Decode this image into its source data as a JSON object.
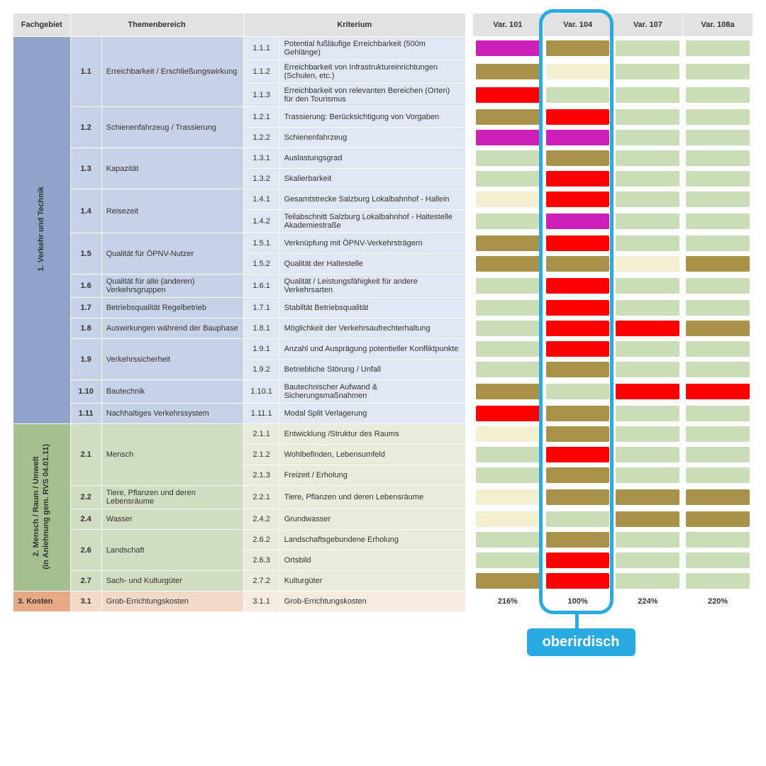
{
  "colors": {
    "palegreen": "#cbddb6",
    "cream": "#f3efd0",
    "olive": "#a8924a",
    "magenta": "#cc1fb8",
    "red": "#ff0000"
  },
  "highlight": {
    "label": "oberirdisch",
    "color": "#29abe2"
  },
  "headers": {
    "fachgebiet": "Fachgebiet",
    "themenbereich": "Themenbereich",
    "kriterium": "Kriterium",
    "variants": [
      "Var. 101",
      "Var. 104",
      "Var. 107",
      "Var. 108a"
    ]
  },
  "groups": [
    {
      "id": "g1",
      "cls": "tb1",
      "fgcls": "fg1",
      "label": "1. Verkehr und Technik",
      "themes": [
        {
          "num": "1.1",
          "txt": "Erreichbarkeit / Erschließungswirkung",
          "krit": [
            {
              "num": "1.1.1",
              "txt": "Potential fußläufige Erreichbarkeit (500m Gehlänge)",
              "v": [
                "magenta",
                "olive",
                "palegreen",
                "palegreen"
              ]
            },
            {
              "num": "1.1.2",
              "txt": "Erreichbarkeit von Infrastruktureinrichtungen (Schulen, etc.)",
              "v": [
                "olive",
                "cream",
                "palegreen",
                "palegreen"
              ]
            },
            {
              "num": "1.1.3",
              "txt": "Erreichbarkeit von relevanten Bereichen (Orten) für den Tourismus",
              "v": [
                "red",
                "palegreen",
                "palegreen",
                "palegreen"
              ]
            }
          ]
        },
        {
          "num": "1.2",
          "txt": "Schienenfahrzeug / Trassierung",
          "krit": [
            {
              "num": "1.2.1",
              "txt": "Trassierung: Berücksichtigung von Vorgaben",
              "v": [
                "olive",
                "red",
                "palegreen",
                "palegreen"
              ]
            },
            {
              "num": "1.2.2",
              "txt": "Schienenfahrzeug",
              "v": [
                "magenta",
                "magenta",
                "palegreen",
                "palegreen"
              ]
            }
          ]
        },
        {
          "num": "1.3",
          "txt": "Kapazität",
          "krit": [
            {
              "num": "1.3.1",
              "txt": "Auslastungsgrad",
              "v": [
                "palegreen",
                "olive",
                "palegreen",
                "palegreen"
              ]
            },
            {
              "num": "1.3.2",
              "txt": "Skalierbarkeit",
              "v": [
                "palegreen",
                "red",
                "palegreen",
                "palegreen"
              ]
            }
          ]
        },
        {
          "num": "1.4",
          "txt": "Reisezeit",
          "krit": [
            {
              "num": "1.4.1",
              "txt": "Gesamtstrecke Salzburg Lokalbahnhof - Hallein",
              "v": [
                "cream",
                "red",
                "palegreen",
                "palegreen"
              ]
            },
            {
              "num": "1.4.2",
              "txt": "Teilabschnitt  Salzburg Lokalbahnhof - Haltestelle Akademiestraße",
              "v": [
                "palegreen",
                "magenta",
                "palegreen",
                "palegreen"
              ]
            }
          ]
        },
        {
          "num": "1.5",
          "txt": "Qualität für ÖPNV-Nutzer",
          "krit": [
            {
              "num": "1.5.1",
              "txt": "Verknüpfung mit ÖPNV-Verkehrsträgern",
              "v": [
                "olive",
                "red",
                "palegreen",
                "palegreen"
              ]
            },
            {
              "num": "1.5.2",
              "txt": "Qualität der Haltestelle",
              "v": [
                "olive",
                "olive",
                "cream",
                "olive"
              ]
            }
          ]
        },
        {
          "num": "1.6",
          "txt": "Qualität für alle (anderen) Verkehrsgruppen",
          "krit": [
            {
              "num": "1.6.1",
              "txt": "Qualität / Leistungsfähigkeit für andere Verkehrsarten",
              "v": [
                "palegreen",
                "red",
                "palegreen",
                "palegreen"
              ]
            }
          ]
        },
        {
          "num": "1.7",
          "txt": "Betriebsqualität Regelbetrieb",
          "krit": [
            {
              "num": "1.7.1",
              "txt": "Stabiltät Betriebsqualität",
              "v": [
                "palegreen",
                "red",
                "palegreen",
                "palegreen"
              ]
            }
          ]
        },
        {
          "num": "1.8",
          "txt": "Auswirkungen während der Bauphase",
          "krit": [
            {
              "num": "1.8.1",
              "txt": "Möglichkeit der Verkehrsaufrechterhaltung",
              "v": [
                "palegreen",
                "red",
                "red",
                "olive"
              ]
            }
          ]
        },
        {
          "num": "1.9",
          "txt": "Verkehrssicherheit",
          "krit": [
            {
              "num": "1.9.1",
              "txt": "Anzahl und Ausprägung potentieller Konfliktpunkte",
              "v": [
                "palegreen",
                "red",
                "palegreen",
                "palegreen"
              ]
            },
            {
              "num": "1.9.2",
              "txt": "Betriebliche Störung / Unfall",
              "v": [
                "palegreen",
                "olive",
                "palegreen",
                "palegreen"
              ]
            }
          ]
        },
        {
          "num": "1.10",
          "txt": "Bautechnik",
          "krit": [
            {
              "num": "1.10.1",
              "txt": "Bautechnischer Aufwand & Sicherungsmaßnahmen",
              "v": [
                "olive",
                "palegreen",
                "red",
                "red"
              ]
            }
          ]
        },
        {
          "num": "1.11",
          "txt": "Nachhaltiges Verkehrssystem",
          "krit": [
            {
              "num": "1.11.1",
              "txt": "Modal Split Verlagerung",
              "v": [
                "red",
                "olive",
                "palegreen",
                "palegreen"
              ]
            }
          ]
        }
      ]
    },
    {
      "id": "g2",
      "cls": "tb2",
      "fgcls": "fg2",
      "label": "2. Mensch / Raum / Umwelt\n(in Anlehnung gem. RVS 04.01.11)",
      "themes": [
        {
          "num": "2.1",
          "txt": "Mensch",
          "krit": [
            {
              "num": "2.1.1",
              "txt": "Entwicklung /Struktur des Raums",
              "v": [
                "cream",
                "olive",
                "palegreen",
                "palegreen"
              ]
            },
            {
              "num": "2.1.2",
              "txt": "Wohlbefinden, Lebensumfeld",
              "v": [
                "palegreen",
                "red",
                "palegreen",
                "palegreen"
              ]
            },
            {
              "num": "2.1.3",
              "txt": "Freizeit / Erholung",
              "v": [
                "palegreen",
                "olive",
                "palegreen",
                "palegreen"
              ]
            }
          ]
        },
        {
          "num": "2.2",
          "txt": "Tiere, Pflanzen und deren Lebensräume",
          "krit": [
            {
              "num": "2.2.1",
              "txt": "Tiere, Pflanzen und deren Lebensräume",
              "v": [
                "cream",
                "olive",
                "olive",
                "olive"
              ]
            }
          ]
        },
        {
          "num": "2.4",
          "txt": "Wasser",
          "krit": [
            {
              "num": "2.4.2",
              "txt": "Grundwasser",
              "v": [
                "cream",
                "palegreen",
                "olive",
                "olive"
              ]
            }
          ]
        },
        {
          "num": "2.6",
          "txt": "Landschaft",
          "krit": [
            {
              "num": "2.6.2",
              "txt": "Landschaftsgebundene Erholung",
              "v": [
                "palegreen",
                "olive",
                "palegreen",
                "palegreen"
              ]
            },
            {
              "num": "2.6.3",
              "txt": "Ortsbild",
              "v": [
                "palegreen",
                "red",
                "palegreen",
                "palegreen"
              ]
            }
          ]
        },
        {
          "num": "2.7",
          "txt": "Sach- und Kulturgüter",
          "krit": [
            {
              "num": "2.7.2",
              "txt": "Kulturgüter",
              "v": [
                "olive",
                "red",
                "palegreen",
                "palegreen"
              ]
            }
          ]
        }
      ]
    },
    {
      "id": "g3",
      "cls": "tb3",
      "fgcls": "fg3",
      "label": "3. Kosten",
      "themes": [
        {
          "num": "3.1",
          "txt": "Grob-Errichtungskosten",
          "krit": [
            {
              "num": "3.1.1",
              "txt": "Grob-Errichtungskosten",
              "vtext": [
                "216%",
                "100%",
                "224%",
                "220%"
              ]
            }
          ]
        }
      ]
    }
  ]
}
